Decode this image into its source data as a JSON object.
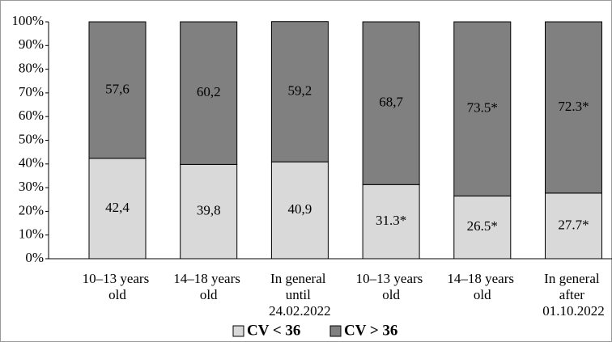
{
  "chart_data": {
    "type": "stacked_bar",
    "categories": [
      "10–13 years old",
      "14–18 years old",
      "In general until 24.02.2022",
      "10–13 years old",
      "14–18 years old",
      "In general after 01.10.2022"
    ],
    "series": [
      {
        "name": "CV < 36",
        "color": "#d9d9d9",
        "values": [
          42.4,
          39.8,
          40.9,
          31.3,
          26.5,
          27.7
        ],
        "value_labels": [
          "42,4",
          "39,8",
          "40,9",
          "31.3*",
          "26.5*",
          "27.7*"
        ]
      },
      {
        "name": "CV > 36",
        "color": "#808080",
        "values": [
          57.6,
          60.2,
          59.2,
          68.7,
          73.5,
          72.3
        ],
        "value_labels": [
          "57,6",
          "60,2",
          "59,2",
          "68,7",
          "73.5*",
          "72.3*"
        ]
      }
    ],
    "ylim": [
      0,
      100
    ],
    "yticks": [
      {
        "value": 0,
        "label": "0%"
      },
      {
        "value": 10,
        "label": "10%"
      },
      {
        "value": 20,
        "label": "20%"
      },
      {
        "value": 30,
        "label": "30%"
      },
      {
        "value": 40,
        "label": "40%"
      },
      {
        "value": 50,
        "label": "50%"
      },
      {
        "value": 60,
        "label": "60%"
      },
      {
        "value": 70,
        "label": "70%"
      },
      {
        "value": 80,
        "label": "80%"
      },
      {
        "value": 90,
        "label": "90%"
      },
      {
        "value": 100,
        "label": "100%"
      }
    ],
    "legend": "bottom"
  }
}
